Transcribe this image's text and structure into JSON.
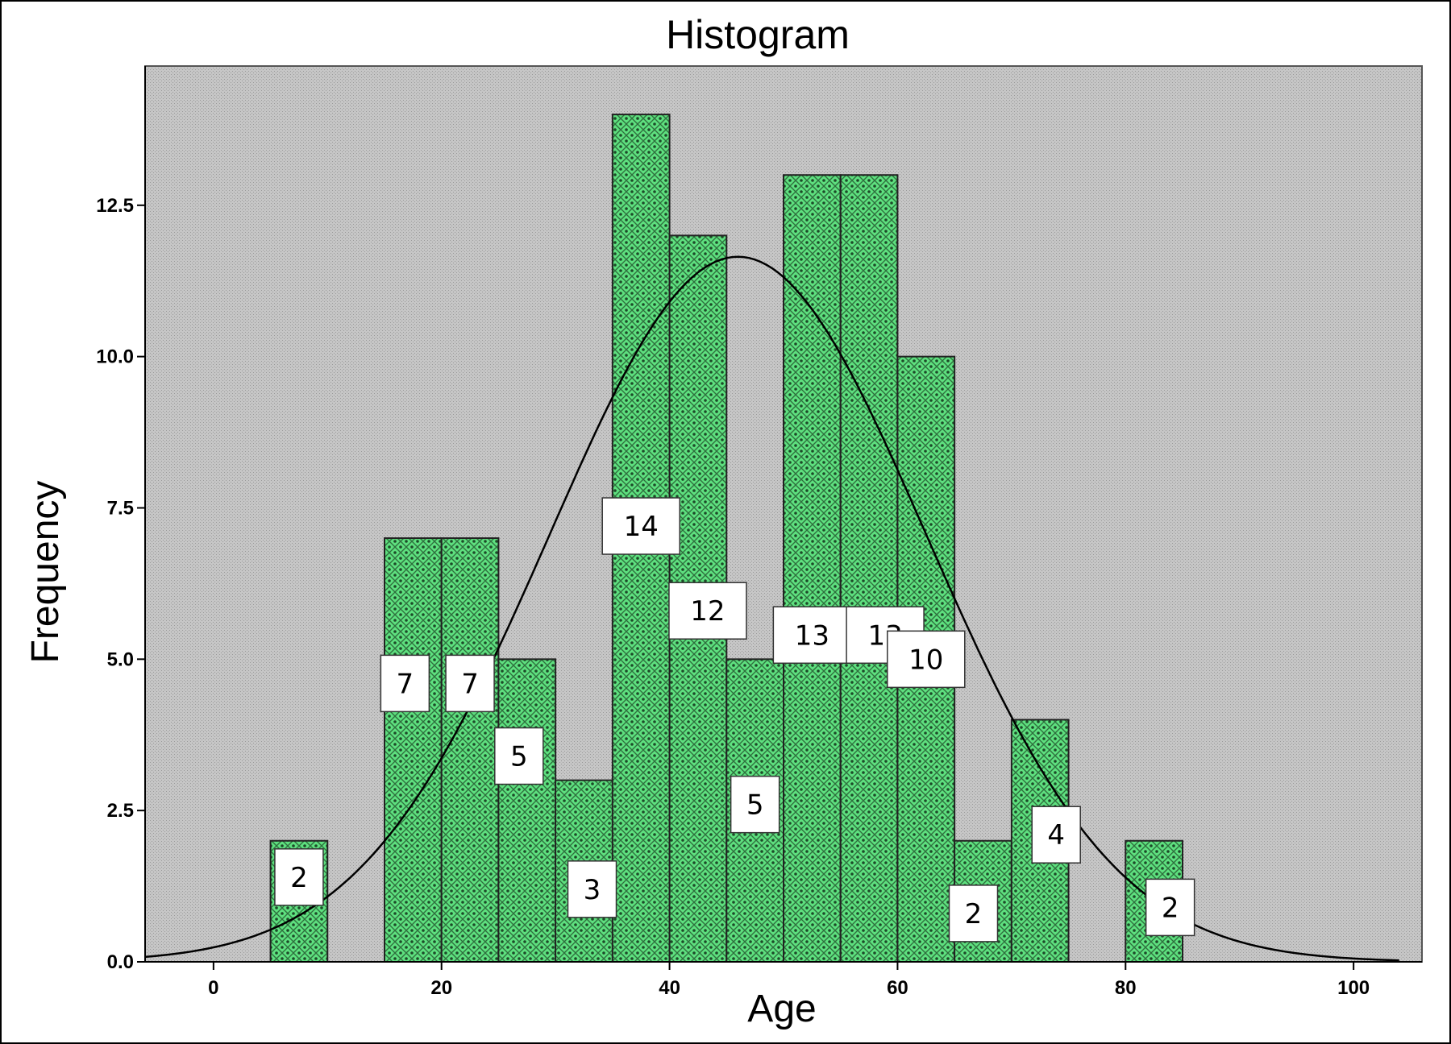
{
  "chart_data": {
    "type": "bar",
    "title": "Histogram",
    "xlabel": "Age",
    "ylabel": "Frequency",
    "xlim": [
      -6,
      106
    ],
    "ylim": [
      0,
      14.8
    ],
    "xticks": [
      0,
      20,
      40,
      60,
      80,
      100
    ],
    "yticks": [
      0.0,
      2.5,
      5.0,
      7.5,
      10.0,
      12.5
    ],
    "bin_width": 5,
    "bins": [
      {
        "start": 5,
        "end": 10,
        "value": 2,
        "label": "2"
      },
      {
        "start": 15,
        "end": 20,
        "value": 7,
        "label": "7"
      },
      {
        "start": 20,
        "end": 25,
        "value": 7,
        "label": "7"
      },
      {
        "start": 25,
        "end": 30,
        "value": 5,
        "label": "5"
      },
      {
        "start": 30,
        "end": 35,
        "value": 3,
        "label": "3"
      },
      {
        "start": 35,
        "end": 40,
        "value": 14,
        "label": "14"
      },
      {
        "start": 40,
        "end": 45,
        "value": 12,
        "label": "12"
      },
      {
        "start": 45,
        "end": 50,
        "value": 5,
        "label": "5"
      },
      {
        "start": 50,
        "end": 55,
        "value": 13,
        "label": "13"
      },
      {
        "start": 55,
        "end": 60,
        "value": 13,
        "label": "13"
      },
      {
        "start": 60,
        "end": 65,
        "value": 10,
        "label": "10"
      },
      {
        "start": 65,
        "end": 70,
        "value": 2,
        "label": "2"
      },
      {
        "start": 70,
        "end": 75,
        "value": 4,
        "label": "4"
      },
      {
        "start": 80,
        "end": 85,
        "value": 2,
        "label": "2"
      }
    ],
    "normal_curve": {
      "mean": 46,
      "sd": 16.5,
      "peak": 11.65
    },
    "colors": {
      "bar": "#5ee07f",
      "background": "#c8c8c8",
      "curve": "#000000"
    }
  }
}
